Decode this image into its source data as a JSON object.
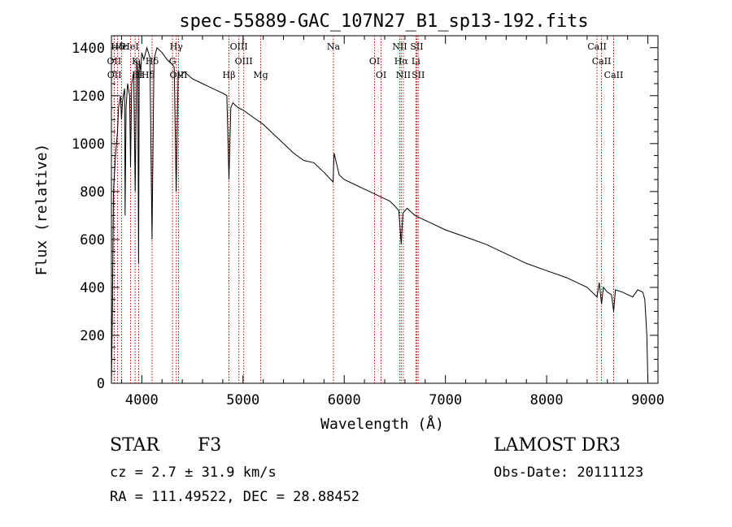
{
  "chart_data": {
    "type": "line",
    "title": "spec-55889-GAC_107N27_B1_sp13-192.fits",
    "xlabel": "Wavelength (Å)",
    "ylabel": "Flux (relative)",
    "xlim": [
      3700,
      9100
    ],
    "ylim": [
      0,
      1450
    ],
    "xticks": [
      4000,
      5000,
      6000,
      7000,
      8000,
      9000
    ],
    "yticks": [
      0,
      200,
      400,
      600,
      800,
      1000,
      1200,
      1400
    ],
    "series": [
      {
        "name": "spectrum",
        "x": [
          3700,
          3710,
          3720,
          3740,
          3760,
          3770,
          3790,
          3800,
          3810,
          3830,
          3835,
          3845,
          3860,
          3880,
          3889,
          3900,
          3920,
          3935,
          3950,
          3960,
          3968,
          3975,
          3990,
          4000,
          4020,
          4050,
          4080,
          4101,
          4120,
          4150,
          4200,
          4250,
          4300,
          4320,
          4340,
          4360,
          4380,
          4420,
          4500,
          4600,
          4700,
          4800,
          4840,
          4861,
          4880,
          4900,
          4950,
          5000,
          5100,
          5200,
          5300,
          5400,
          5500,
          5600,
          5700,
          5800,
          5890,
          5900,
          5950,
          6000,
          6100,
          6200,
          6300,
          6400,
          6450,
          6500,
          6540,
          6563,
          6580,
          6620,
          6700,
          6800,
          6900,
          7000,
          7200,
          7400,
          7600,
          7800,
          8000,
          8200,
          8400,
          8498,
          8520,
          8542,
          8560,
          8600,
          8640,
          8662,
          8680,
          8750,
          8800,
          8850,
          8900,
          8950,
          8970,
          8990,
          9000
        ],
        "values": [
          0,
          300,
          800,
          950,
          1050,
          1150,
          1200,
          1100,
          1180,
          1230,
          700,
          1150,
          1250,
          1200,
          900,
          1250,
          1300,
          800,
          1350,
          1300,
          500,
          1350,
          1300,
          1380,
          1350,
          1400,
          1360,
          600,
          1350,
          1400,
          1380,
          1350,
          1330,
          1320,
          800,
          1300,
          1280,
          1300,
          1270,
          1250,
          1230,
          1210,
          1200,
          850,
          1150,
          1170,
          1150,
          1140,
          1110,
          1080,
          1040,
          1000,
          960,
          930,
          920,
          880,
          840,
          960,
          870,
          850,
          830,
          810,
          790,
          770,
          760,
          740,
          720,
          580,
          710,
          730,
          700,
          680,
          660,
          640,
          610,
          580,
          540,
          500,
          470,
          440,
          400,
          360,
          420,
          330,
          400,
          380,
          370,
          300,
          390,
          380,
          370,
          360,
          390,
          380,
          350,
          200,
          0
        ]
      }
    ],
    "lines": [
      {
        "label": "Hδ",
        "x": 3760
      },
      {
        "label": "OII",
        "x": 3727
      },
      {
        "label": "OII",
        "x": 3729
      },
      {
        "label": "Hε",
        "x": 3800
      },
      {
        "label": "K",
        "x": 3934
      },
      {
        "label": "H",
        "x": 3969
      },
      {
        "label": "HeI",
        "x": 3889
      },
      {
        "label": "Hδ",
        "x": 4102
      },
      {
        "label": "OIII",
        "x": 4363
      },
      {
        "label": "Hγ",
        "x": 4341
      },
      {
        "label": "G",
        "x": 4304
      },
      {
        "label": "Hβ",
        "x": 4861
      },
      {
        "label": "OIII",
        "x": 4959
      },
      {
        "label": "OIII",
        "x": 5007
      },
      {
        "label": "Mg",
        "x": 5175
      },
      {
        "label": "Na",
        "x": 5893
      },
      {
        "label": "OI",
        "x": 6300
      },
      {
        "label": "OI",
        "x": 6364
      },
      {
        "label": "NII",
        "x": 6548
      },
      {
        "label": "Hα",
        "x": 6563
      },
      {
        "label": "NII",
        "x": 6584
      },
      {
        "label": "SII",
        "x": 6717
      },
      {
        "label": "Li",
        "x": 6708
      },
      {
        "label": "SII",
        "x": 6731
      },
      {
        "label": "CaII",
        "x": 8498
      },
      {
        "label": "CaII",
        "x": 8542
      },
      {
        "label": "CaII",
        "x": 8662
      }
    ],
    "extra_line_labels": [
      "Hε",
      "Hδ"
    ]
  },
  "info": {
    "object_class": "STAR",
    "subclass": "F3",
    "survey": "LAMOST DR3",
    "redshift": "cz = 2.7 ± 31.9 km/s",
    "obs_date": "Obs-Date: 20111123",
    "coords": "RA = 111.49522, DEC =  28.88452"
  }
}
